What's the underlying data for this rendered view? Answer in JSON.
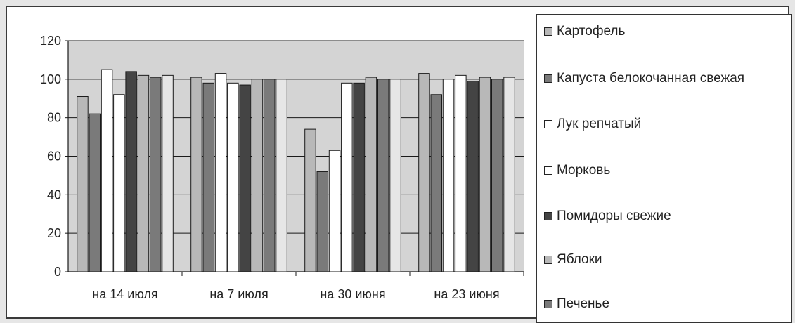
{
  "chart_data": {
    "type": "bar",
    "categories": [
      "на 14 июля",
      "на 7 июля",
      "на 30 июня",
      "на 23 июня"
    ],
    "ylim": [
      0,
      120
    ],
    "yticks": [
      0,
      20,
      40,
      60,
      80,
      100,
      120
    ],
    "grid": true,
    "legend_position": "right",
    "series": [
      {
        "name": "Картофель",
        "color": "#b8b8b8",
        "values": [
          91,
          101,
          74,
          103
        ]
      },
      {
        "name": "Капуста белокочанная свежая",
        "color": "#7a7a7a",
        "values": [
          82,
          98,
          52,
          92
        ]
      },
      {
        "name": "Лук репчатый",
        "color": "#ffffff",
        "values": [
          105,
          103,
          63,
          100
        ]
      },
      {
        "name": "Морковь",
        "color": "#ffffff",
        "values": [
          92,
          98,
          98,
          102
        ]
      },
      {
        "name": "Помидоры свежие",
        "color": "#444444",
        "values": [
          104,
          97,
          98,
          99
        ]
      },
      {
        "name": "Яблоки",
        "color": "#b8b8b8",
        "values": [
          102,
          100,
          101,
          101
        ]
      },
      {
        "name": "Печенье",
        "color": "#7a7a7a",
        "values": [
          101,
          100,
          100,
          100
        ]
      },
      {
        "name": "",
        "color": "#e6e6e6",
        "values": [
          102,
          100,
          100,
          101
        ]
      }
    ],
    "plot_background": "#d4d4d4"
  }
}
